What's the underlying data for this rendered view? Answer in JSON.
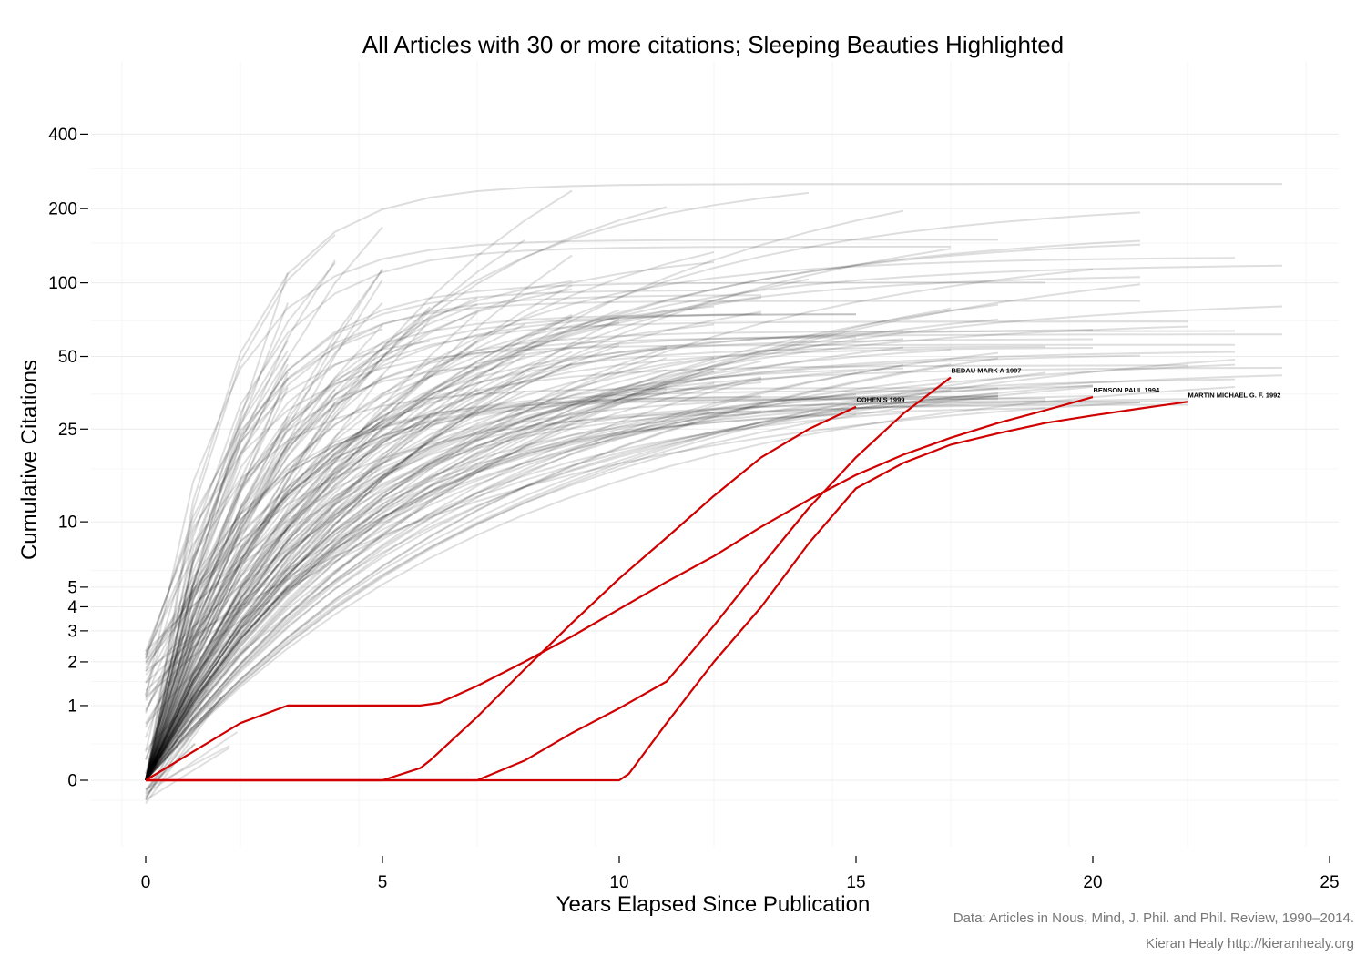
{
  "chart_data": {
    "type": "line",
    "title": "All Articles with 30 or more citations; Sleeping Beauties Highlighted",
    "xlabel": "Years Elapsed Since Publication",
    "ylabel": "Cumulative Citations",
    "xlim": [
      -0.6,
      25.2
    ],
    "x_ticks": [
      0,
      5,
      10,
      15,
      20,
      25
    ],
    "y_scale": "log1p",
    "y_ticks": [
      0,
      1,
      2,
      3,
      4,
      5,
      10,
      25,
      50,
      100,
      200,
      400
    ],
    "grid": true,
    "background_series": {
      "count": 160,
      "color": "#000000",
      "note": "All Articles with 30 or more citations"
    },
    "highlight_color": "#d00000",
    "series": [
      {
        "name": "COHEN S 1999",
        "x": [
          0,
          5,
          5.8,
          6,
          7,
          8,
          9,
          10,
          11,
          12,
          13,
          14,
          15
        ],
        "y": [
          0,
          0,
          0.12,
          0.2,
          0.8,
          1.8,
          3.3,
          5.5,
          8.5,
          13,
          19,
          25,
          31
        ]
      },
      {
        "name": "BEDAU MARK A 1997",
        "x": [
          0,
          7,
          8,
          9,
          10,
          11,
          12,
          13,
          14,
          15,
          16,
          17
        ],
        "y": [
          0,
          0,
          0.2,
          0.55,
          0.95,
          1.5,
          3.2,
          6.3,
          11.5,
          19,
          29,
          41
        ]
      },
      {
        "name": "BENSON PAUL 1994",
        "x": [
          0,
          2,
          3,
          4,
          5,
          5.8,
          6.2,
          7,
          8,
          9,
          10,
          11,
          12,
          13,
          14,
          15,
          16,
          17,
          18,
          19,
          20
        ],
        "y": [
          0,
          0.7,
          1,
          1,
          1,
          1,
          1.05,
          1.4,
          2,
          2.8,
          3.9,
          5.3,
          7,
          9.5,
          12.5,
          16,
          19.5,
          23,
          26.5,
          30,
          34
        ]
      },
      {
        "name": "MARTIN MICHAEL G. F. 1992",
        "x": [
          0,
          10,
          10.2,
          11,
          12,
          13,
          14,
          15,
          16,
          17,
          18,
          19,
          20,
          21,
          22
        ],
        "y": [
          0,
          0,
          0.06,
          0.7,
          2,
          4,
          8,
          14,
          18,
          21.5,
          24,
          26.5,
          28.5,
          30.5,
          32.5
        ]
      }
    ],
    "caption_lines": [
      "Data: Articles in Nous, Mind, J. Phil. and Phil. Review, 1990–2014.",
      "Kieran Healy http://kieranhealy.org"
    ]
  }
}
